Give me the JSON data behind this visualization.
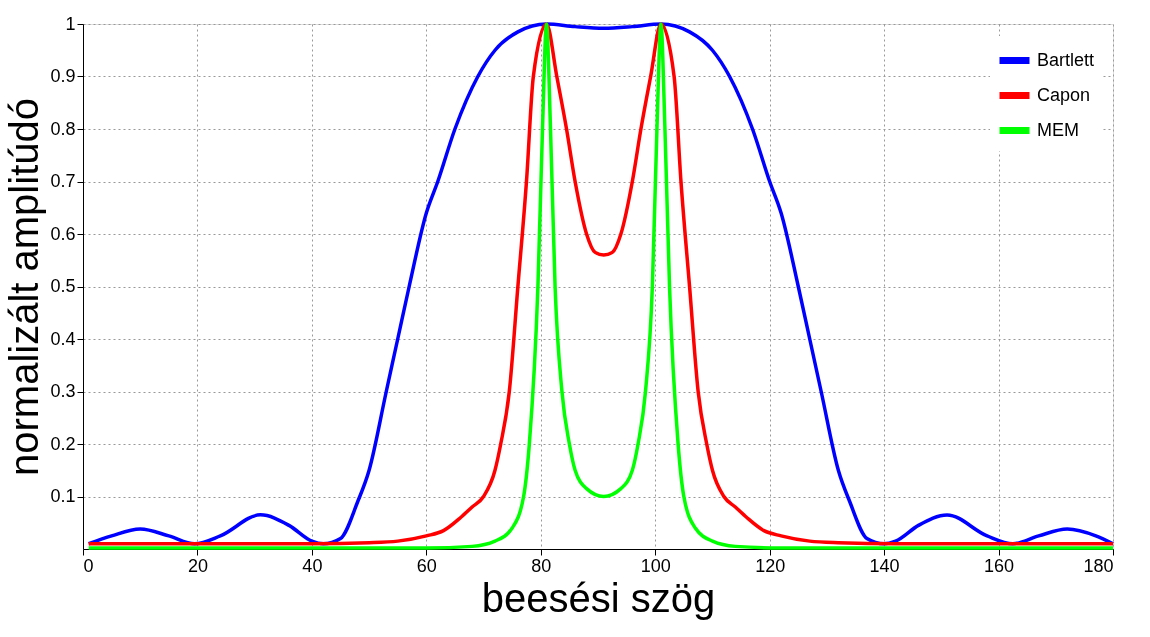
{
  "chart_data": {
    "type": "line",
    "xlabel": "beesési szög",
    "ylabel": "normalizált amplitúdó",
    "xlim": [
      0,
      180
    ],
    "xticks": [
      0,
      20,
      40,
      60,
      80,
      100,
      120,
      140,
      160,
      180
    ],
    "ylim": [
      0,
      1
    ],
    "yticks": [
      0.1,
      0.2,
      0.3,
      0.4,
      0.5,
      0.6,
      0.7,
      0.8,
      0.9,
      1
    ],
    "grid": true,
    "legend": "top right",
    "marker": "none",
    "line_style": "solid",
    "series": [
      {
        "name": "Bartlett",
        "color": "#0000ff",
        "x": [
          1,
          5,
          10,
          15,
          19.5,
          24,
          31,
          36,
          40,
          42,
          45,
          48,
          50,
          53,
          55,
          57,
          60,
          62,
          65,
          69,
          72,
          76,
          81,
          86,
          91,
          96,
          101,
          106,
          110,
          113,
          117,
          120,
          122,
          125,
          127,
          129,
          132,
          134,
          137,
          140,
          142,
          146,
          151,
          158,
          162.5,
          167,
          172,
          177,
          180
        ],
        "values": [
          0.01,
          0.025,
          0.038,
          0.025,
          0.01,
          0.025,
          0.065,
          0.045,
          0.015,
          0.01,
          0.02,
          0.09,
          0.15,
          0.3,
          0.4,
          0.5,
          0.64,
          0.7,
          0.8,
          0.9,
          0.95,
          0.985,
          1.0,
          0.995,
          0.992,
          0.995,
          1.0,
          0.985,
          0.95,
          0.9,
          0.8,
          0.7,
          0.64,
          0.5,
          0.4,
          0.3,
          0.15,
          0.09,
          0.02,
          0.01,
          0.015,
          0.045,
          0.065,
          0.025,
          0.01,
          0.025,
          0.038,
          0.025,
          0.01
        ]
      },
      {
        "name": "Capon",
        "color": "#ff0000",
        "x": [
          1,
          40,
          50,
          55,
          60,
          63,
          66,
          68,
          70,
          72,
          73,
          74.5,
          76,
          77.5,
          78.7,
          81,
          82.8,
          84.5,
          86,
          88,
          89.5,
          91,
          92.5,
          94,
          96,
          97.5,
          99.2,
          101,
          103.3,
          104.5,
          106,
          107.5,
          109,
          110,
          112,
          114,
          116,
          119,
          122,
          127,
          132,
          142,
          180
        ],
        "values": [
          0.01,
          0.01,
          0.012,
          0.015,
          0.025,
          0.035,
          0.06,
          0.08,
          0.1,
          0.15,
          0.2,
          0.3,
          0.5,
          0.7,
          0.9,
          1.0,
          0.9,
          0.8,
          0.7,
          0.6,
          0.565,
          0.56,
          0.565,
          0.6,
          0.7,
          0.8,
          0.9,
          1.0,
          0.9,
          0.7,
          0.5,
          0.3,
          0.2,
          0.15,
          0.1,
          0.08,
          0.06,
          0.035,
          0.025,
          0.015,
          0.012,
          0.01,
          0.01
        ]
      },
      {
        "name": "MEM",
        "color": "#00ff00",
        "x": [
          1,
          60,
          68,
          72,
          75,
          77,
          78,
          79.5,
          80.3,
          81,
          81.7,
          82.5,
          83.7,
          85,
          86,
          88,
          91,
          94,
          96,
          97,
          98.3,
          99.5,
          100.3,
          101,
          101.7,
          102.5,
          104,
          105,
          107,
          110,
          114,
          122,
          180
        ],
        "values": [
          0.002,
          0.002,
          0.005,
          0.015,
          0.04,
          0.1,
          0.2,
          0.5,
          0.8,
          1.0,
          0.8,
          0.5,
          0.3,
          0.2,
          0.15,
          0.115,
          0.1,
          0.115,
          0.15,
          0.2,
          0.3,
          0.5,
          0.8,
          1.0,
          0.8,
          0.5,
          0.2,
          0.1,
          0.04,
          0.015,
          0.005,
          0.002,
          0.002
        ]
      }
    ]
  }
}
